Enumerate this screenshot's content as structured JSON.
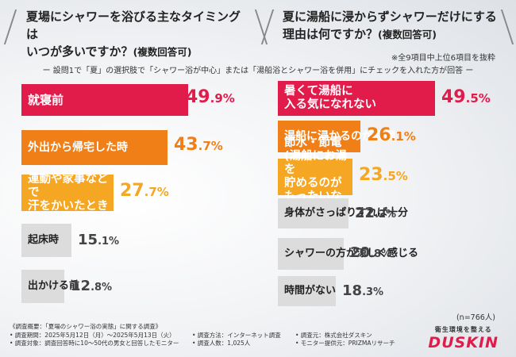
{
  "left_title": {
    "main": "夏場にシャワーを浴びる主なタイミングは",
    "line2": "いつが多いですか？",
    "sub": "(複数回答可)"
  },
  "right_title": {
    "main": "夏に湯船に浸からずシャワーだけにする",
    "line2": "理由は何ですか？",
    "sub": "(複数回答可)"
  },
  "right_note": "※全9項目中上位6項目を抜粋",
  "condition": "ー 設問1で「夏」の選択肢で「シャワー浴が中心」または「湯船浴とシャワー浴を併用」にチェックを入れた方が回答 ー",
  "n_note": "(n=766人)",
  "footer": {
    "summary": "《調査概要：「夏場のシャワー浴の実態」に関する調査》",
    "period": "• 調査期間：2025年5月12日（月）〜2025年5月13日（火）",
    "method": "• 調査方法：インターネット調査",
    "organizer": "• 調査元：株式会社ダスキン",
    "target": "• 調査対象：調査回答時に10〜50代の男女と回答したモニター",
    "count": "• 調査人数：1,025人",
    "provider": "• モニター提供元：PRIZMAリサーチ"
  },
  "logo": {
    "tagline": "衛生環境を整える",
    "name": "DUSKIN"
  },
  "colors": {
    "red": "#e11b4a",
    "orange": "#f07f18",
    "light_orange": "#f5a623",
    "gray": "#dcdcdc"
  },
  "chart_data": [
    {
      "type": "bar",
      "orientation": "horizontal",
      "title": "夏場にシャワーを浴びる主なタイミングはいつが多いですか？(複数回答可)",
      "unit": "%",
      "xlim": [
        0,
        100
      ],
      "categories": [
        "就寝前",
        "外出から帰宅した時",
        "運動や家事などで汗をかいたとき",
        "起床時",
        "出かける前"
      ],
      "values": [
        49.9,
        43.7,
        27.7,
        15.1,
        12.8
      ],
      "labels": [
        {
          "line1": "就寝前",
          "int": "49",
          "dec": ".9%"
        },
        {
          "line1": "外出から帰宅した時",
          "int": "43",
          "dec": ".7%"
        },
        {
          "line1": "運動や家事などで",
          "line2": "汗をかいたとき",
          "int": "27",
          "dec": ".7%"
        },
        {
          "line1": "起床時",
          "int": "15",
          "dec": ".1%"
        },
        {
          "line1": "出かける前",
          "int": "12",
          "dec": ".8%"
        }
      ]
    },
    {
      "type": "bar",
      "orientation": "horizontal",
      "title": "夏に湯船に浸からずシャワーだけにする理由は何ですか？(複数回答可)",
      "unit": "%",
      "xlim": [
        0,
        100
      ],
      "categories": [
        "暑くて湯船に入る気になれない",
        "湯船に浸かるのが面倒",
        "節水・節電(湯船にお湯を貯めるのがもったいないなど)",
        "身体がさっぱりすれば十分",
        "シャワーの方が涼しく感じる",
        "時間がない"
      ],
      "values": [
        49.5,
        26.1,
        23.5,
        22.2,
        20.8,
        18.3
      ],
      "labels": [
        {
          "line1": "暑くて湯船に",
          "line2": "入る気になれない",
          "int": "49",
          "dec": ".5%"
        },
        {
          "line1": "湯船に浸かるのが面倒",
          "int": "26",
          "dec": ".1%"
        },
        {
          "line1": "節水・節電",
          "line1b": "(湯船にお湯を",
          "line2": "貯めるのがもったいないなど)",
          "int": "23",
          "dec": ".5%"
        },
        {
          "line1": "身体がさっぱりすれば十分",
          "int": "22",
          "dec": ".2%"
        },
        {
          "line1": "シャワーの方が涼しく感じる",
          "int": "20",
          "dec": ".8%"
        },
        {
          "line1": "時間がない",
          "int": "18",
          "dec": ".3%"
        }
      ]
    }
  ]
}
